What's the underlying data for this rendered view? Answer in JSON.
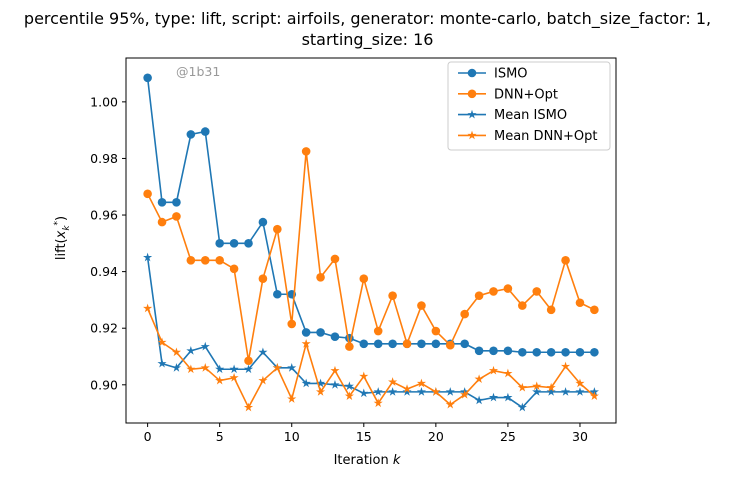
{
  "chart_data": {
    "type": "line",
    "title_line1": "percentile 95%, type: lift, script: airfoils, generator: monte-carlo, batch_size_factor: 1,",
    "title_line2": "starting_size: 16",
    "xlabel": "Iteration k",
    "ylabel": "lift(x_k*)",
    "watermark": "@1b31",
    "xlim": [
      -1.5,
      32.5
    ],
    "ylim": [
      0.8865,
      1.0155
    ],
    "xticks": [
      0,
      5,
      10,
      15,
      20,
      25,
      30
    ],
    "yticks": [
      0.9,
      0.92,
      0.94,
      0.96,
      0.98,
      1.0
    ],
    "ytick_labels": [
      "0.90",
      "0.92",
      "0.94",
      "0.96",
      "0.98",
      "1.00"
    ],
    "legend_position": "top-right",
    "x": [
      0,
      1,
      2,
      3,
      4,
      5,
      6,
      7,
      8,
      9,
      10,
      11,
      12,
      13,
      14,
      15,
      16,
      17,
      18,
      19,
      20,
      21,
      22,
      23,
      24,
      25,
      26,
      27,
      28,
      29,
      30,
      31
    ],
    "series": [
      {
        "name": "ISMO",
        "color": "#1f77b4",
        "marker": "circle",
        "values": [
          1.0085,
          0.9645,
          0.9645,
          0.9885,
          0.9895,
          0.95,
          0.95,
          0.95,
          0.9575,
          0.932,
          0.932,
          0.9185,
          0.9185,
          0.917,
          0.9165,
          0.9145,
          0.9145,
          0.9145,
          0.9145,
          0.9145,
          0.9145,
          0.9145,
          0.9145,
          0.912,
          0.912,
          0.912,
          0.9115,
          0.9115,
          0.9115,
          0.9115,
          0.9115,
          0.9115
        ]
      },
      {
        "name": "DNN+Opt",
        "color": "#ff7f0e",
        "marker": "circle",
        "values": [
          0.9675,
          0.9575,
          0.9595,
          0.944,
          0.944,
          0.944,
          0.941,
          0.9085,
          0.9375,
          0.955,
          0.9215,
          0.9825,
          0.938,
          0.9445,
          0.9135,
          0.9375,
          0.919,
          0.9315,
          0.9145,
          0.928,
          0.919,
          0.914,
          0.925,
          0.9315,
          0.933,
          0.934,
          0.928,
          0.933,
          0.9265,
          0.944,
          0.929,
          0.9265
        ]
      },
      {
        "name": "Mean ISMO",
        "color": "#1f77b4",
        "marker": "star",
        "values": [
          0.945,
          0.9075,
          0.906,
          0.912,
          0.9135,
          0.9055,
          0.9055,
          0.9055,
          0.9115,
          0.906,
          0.906,
          0.9005,
          0.9005,
          0.9,
          0.8995,
          0.897,
          0.8975,
          0.8975,
          0.8975,
          0.8975,
          0.8975,
          0.8975,
          0.8975,
          0.8945,
          0.8955,
          0.8955,
          0.892,
          0.8975,
          0.8975,
          0.8975,
          0.8975,
          0.8975
        ]
      },
      {
        "name": "Mean DNN+Opt",
        "color": "#ff7f0e",
        "marker": "star",
        "values": [
          0.927,
          0.915,
          0.9115,
          0.9055,
          0.906,
          0.9015,
          0.9025,
          0.892,
          0.9015,
          0.906,
          0.895,
          0.9145,
          0.8975,
          0.905,
          0.896,
          0.903,
          0.8935,
          0.901,
          0.8985,
          0.9005,
          0.8975,
          0.893,
          0.8965,
          0.902,
          0.905,
          0.904,
          0.899,
          0.8995,
          0.899,
          0.9065,
          0.9005,
          0.896
        ]
      }
    ]
  }
}
